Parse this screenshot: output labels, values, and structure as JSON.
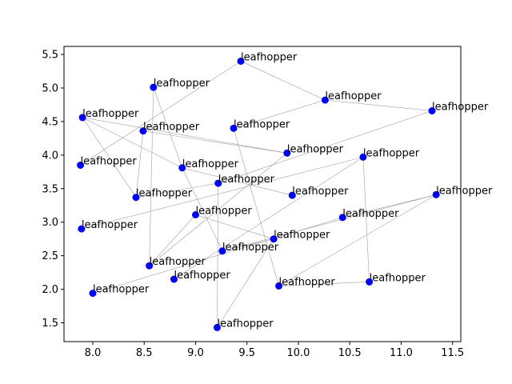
{
  "chart_data": {
    "type": "scatter",
    "title": "",
    "xlabel": "",
    "ylabel": "",
    "xlim": [
      7.72,
      11.58
    ],
    "ylim": [
      1.22,
      5.62
    ],
    "xticks": [
      8.0,
      8.5,
      9.0,
      9.5,
      10.0,
      10.5,
      11.0,
      11.5
    ],
    "xtick_labels": [
      "8.0",
      "8.5",
      "9.0",
      "9.5",
      "10.0",
      "10.5",
      "11.0",
      "11.5"
    ],
    "yticks": [
      1.5,
      2.0,
      2.5,
      3.0,
      3.5,
      4.0,
      4.5,
      5.0,
      5.5
    ],
    "ytick_labels": [
      "1.5",
      "2.0",
      "2.5",
      "3.0",
      "3.5",
      "4.0",
      "4.5",
      "5.0",
      "5.5"
    ],
    "grid": false,
    "legend": false,
    "point_color": "#0000ff",
    "edge_color": "#a0a0a0",
    "points": [
      {
        "x": 9.44,
        "y": 5.4,
        "label": "leafhopper"
      },
      {
        "x": 8.59,
        "y": 5.01,
        "label": "leafhopper"
      },
      {
        "x": 7.9,
        "y": 4.56,
        "label": "leafhopper"
      },
      {
        "x": 10.26,
        "y": 4.82,
        "label": "leafhopper"
      },
      {
        "x": 11.3,
        "y": 4.66,
        "label": "leafhopper"
      },
      {
        "x": 8.49,
        "y": 4.36,
        "label": "leafhopper"
      },
      {
        "x": 9.37,
        "y": 4.4,
        "label": "leafhopper"
      },
      {
        "x": 7.88,
        "y": 3.85,
        "label": "leafhopper"
      },
      {
        "x": 8.87,
        "y": 3.81,
        "label": "leafhopper"
      },
      {
        "x": 9.89,
        "y": 4.03,
        "label": "leafhopper"
      },
      {
        "x": 10.63,
        "y": 3.97,
        "label": "leafhopper"
      },
      {
        "x": 9.22,
        "y": 3.58,
        "label": "leafhopper"
      },
      {
        "x": 8.42,
        "y": 3.37,
        "label": "leafhopper"
      },
      {
        "x": 9.94,
        "y": 3.4,
        "label": "leafhopper"
      },
      {
        "x": 11.34,
        "y": 3.41,
        "label": "leafhopper"
      },
      {
        "x": 9.0,
        "y": 3.11,
        "label": "leafhopper"
      },
      {
        "x": 7.89,
        "y": 2.9,
        "label": "leafhopper"
      },
      {
        "x": 10.43,
        "y": 3.07,
        "label": "leafhopper"
      },
      {
        "x": 9.76,
        "y": 2.75,
        "label": "leafhopper"
      },
      {
        "x": 9.26,
        "y": 2.57,
        "label": "leafhopper"
      },
      {
        "x": 8.55,
        "y": 2.35,
        "label": "leafhopper"
      },
      {
        "x": 8.79,
        "y": 2.15,
        "label": "leafhopper"
      },
      {
        "x": 8.0,
        "y": 1.94,
        "label": "leafhopper"
      },
      {
        "x": 9.81,
        "y": 2.05,
        "label": "leafhopper"
      },
      {
        "x": 10.69,
        "y": 2.11,
        "label": "leafhopper"
      },
      {
        "x": 9.21,
        "y": 1.43,
        "label": "leafhopper"
      }
    ],
    "edges": [
      [
        0,
        3
      ],
      [
        3,
        4
      ],
      [
        0,
        7
      ],
      [
        3,
        6
      ],
      [
        6,
        23
      ],
      [
        1,
        8
      ],
      [
        8,
        19
      ],
      [
        1,
        20
      ],
      [
        2,
        8
      ],
      [
        2,
        12
      ],
      [
        2,
        9
      ],
      [
        5,
        12
      ],
      [
        5,
        9
      ],
      [
        4,
        11
      ],
      [
        11,
        25
      ],
      [
        10,
        16
      ],
      [
        10,
        24
      ],
      [
        10,
        21
      ],
      [
        9,
        20
      ],
      [
        12,
        11
      ],
      [
        13,
        8
      ],
      [
        14,
        17
      ],
      [
        14,
        19
      ],
      [
        14,
        23
      ],
      [
        15,
        18
      ],
      [
        15,
        20
      ],
      [
        17,
        22
      ],
      [
        18,
        25
      ],
      [
        19,
        18
      ],
      [
        23,
        24
      ]
    ]
  }
}
